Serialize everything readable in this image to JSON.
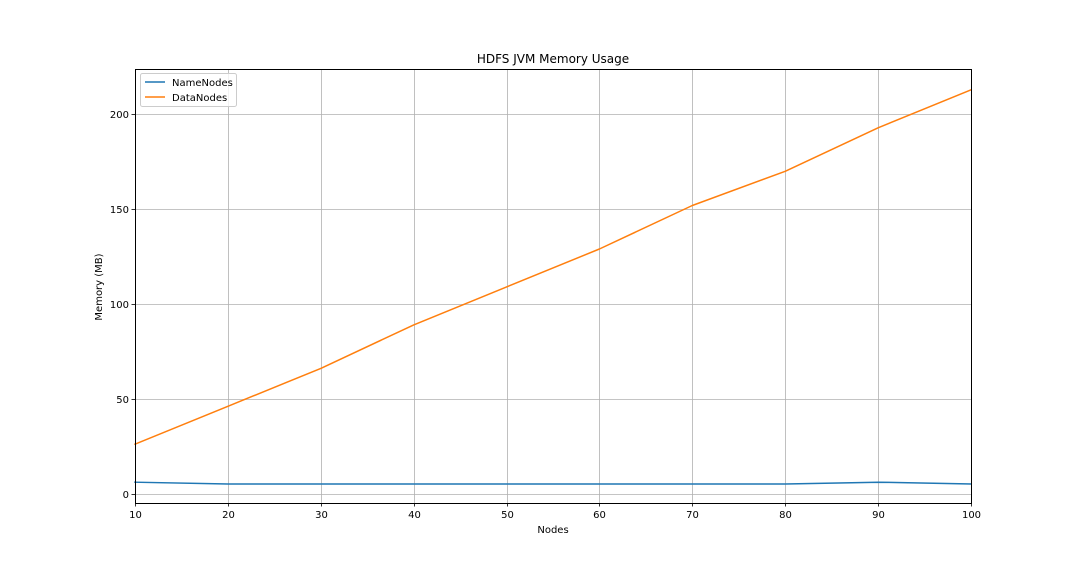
{
  "chart_data": {
    "type": "line",
    "title": "HDFS JVM Memory Usage",
    "xlabel": "Nodes",
    "ylabel": "Memory (MB)",
    "x": [
      10,
      20,
      30,
      40,
      50,
      60,
      70,
      80,
      90,
      100
    ],
    "xlim": [
      10,
      100
    ],
    "ylim": [
      -5,
      224
    ],
    "xticks": [
      10,
      20,
      30,
      40,
      50,
      60,
      70,
      80,
      90,
      100
    ],
    "yticks": [
      0,
      50,
      100,
      150,
      200
    ],
    "grid": true,
    "legend_position": "top-left",
    "series": [
      {
        "name": "NameNodes",
        "color": "#1f77b4",
        "values": [
          6,
          5,
          5,
          5,
          5,
          5,
          5,
          5,
          6,
          5
        ]
      },
      {
        "name": "DataNodes",
        "color": "#ff7f0e",
        "values": [
          26,
          46,
          66,
          89,
          109,
          129,
          152,
          170,
          193,
          213
        ]
      }
    ]
  }
}
